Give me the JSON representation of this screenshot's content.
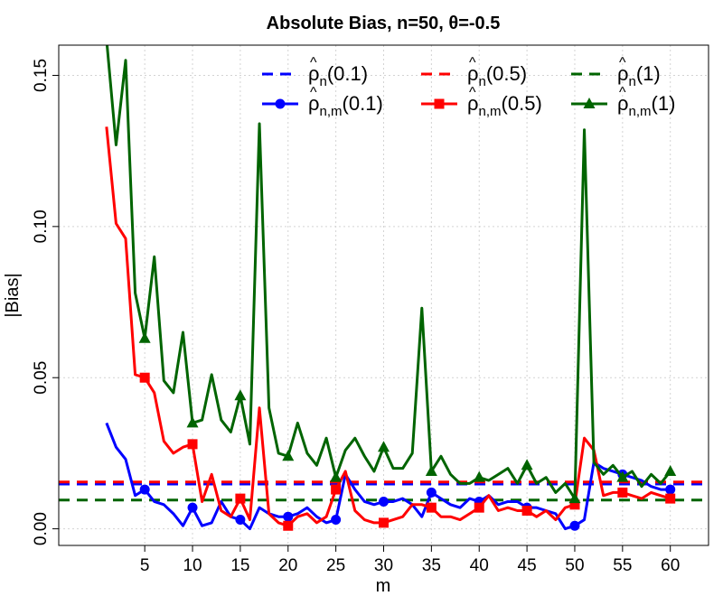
{
  "chart_data": {
    "type": "line",
    "title": "Absolute Bias, n=50, θ=-0.5",
    "xlabel": "m",
    "ylabel": "|Bias|",
    "xlim": [
      -4,
      64
    ],
    "ylim": [
      -0.0055,
      0.16
    ],
    "x_ticks": [
      5,
      10,
      15,
      20,
      25,
      30,
      35,
      40,
      45,
      50,
      55,
      60
    ],
    "y_ticks": [
      0.0,
      0.05,
      0.1,
      0.15
    ],
    "y_tick_labels": [
      "0.00",
      "0.05",
      "0.10",
      "0.15"
    ],
    "grid": true,
    "legend_position": "top-right",
    "reference_lines": [
      {
        "rho": "ρ",
        "sub": "n",
        "arg": "(0.1)",
        "value": 0.0148,
        "color": "#0000ff"
      },
      {
        "rho": "ρ",
        "sub": "n",
        "arg": "(0.5)",
        "value": 0.0155,
        "color": "#ff0000"
      },
      {
        "rho": "ρ",
        "sub": "n",
        "arg": "(1)",
        "value": 0.0095,
        "color": "#006400"
      }
    ],
    "series": [
      {
        "rho": "ρ",
        "sub": "n,m",
        "arg": "(0.1)",
        "color": "#0000ff",
        "marker": "circle",
        "x": [
          1,
          2,
          3,
          4,
          5,
          6,
          7,
          8,
          9,
          10,
          11,
          12,
          13,
          14,
          15,
          16,
          17,
          18,
          19,
          20,
          21,
          22,
          23,
          24,
          25,
          26,
          27,
          28,
          29,
          30,
          31,
          32,
          33,
          34,
          35,
          36,
          37,
          38,
          39,
          40,
          41,
          42,
          43,
          44,
          45,
          46,
          47,
          48,
          49,
          50,
          51,
          52,
          53,
          54,
          55,
          56,
          57,
          58,
          59,
          60
        ],
        "values": [
          0.035,
          0.027,
          0.023,
          0.011,
          0.013,
          0.009,
          0.008,
          0.005,
          0.001,
          0.007,
          0.001,
          0.002,
          0.009,
          0.004,
          0.003,
          0.0,
          0.007,
          0.005,
          0.004,
          0.004,
          0.005,
          0.007,
          0.004,
          0.002,
          0.003,
          0.018,
          0.013,
          0.009,
          0.008,
          0.009,
          0.009,
          0.01,
          0.008,
          0.004,
          0.012,
          0.01,
          0.008,
          0.007,
          0.01,
          0.009,
          0.011,
          0.008,
          0.009,
          0.009,
          0.007,
          0.007,
          0.006,
          0.005,
          0.0,
          0.001,
          0.003,
          0.022,
          0.02,
          0.019,
          0.018,
          0.017,
          0.016,
          0.014,
          0.013,
          0.013
        ]
      },
      {
        "rho": "ρ",
        "sub": "n,m",
        "arg": "(0.5)",
        "color": "#ff0000",
        "marker": "square",
        "x": [
          1,
          2,
          3,
          4,
          5,
          6,
          7,
          8,
          9,
          10,
          11,
          12,
          13,
          14,
          15,
          16,
          17,
          18,
          19,
          20,
          21,
          22,
          23,
          24,
          25,
          26,
          27,
          28,
          29,
          30,
          31,
          32,
          33,
          34,
          35,
          36,
          37,
          38,
          39,
          40,
          41,
          42,
          43,
          44,
          45,
          46,
          47,
          48,
          49,
          50,
          51,
          52,
          53,
          54,
          55,
          56,
          57,
          58,
          59,
          60
        ],
        "values": [
          0.133,
          0.101,
          0.096,
          0.051,
          0.05,
          0.045,
          0.029,
          0.025,
          0.027,
          0.028,
          0.009,
          0.018,
          0.006,
          0.004,
          0.01,
          0.003,
          0.04,
          0.005,
          0.002,
          0.001,
          0.004,
          0.005,
          0.002,
          0.004,
          0.013,
          0.019,
          0.006,
          0.003,
          0.002,
          0.002,
          0.003,
          0.004,
          0.008,
          0.008,
          0.007,
          0.004,
          0.004,
          0.003,
          0.005,
          0.007,
          0.011,
          0.006,
          0.007,
          0.006,
          0.006,
          0.004,
          0.006,
          0.003,
          0.007,
          0.008,
          0.03,
          0.026,
          0.011,
          0.012,
          0.012,
          0.011,
          0.01,
          0.012,
          0.011,
          0.01
        ]
      },
      {
        "rho": "ρ",
        "sub": "n,m",
        "arg": "(1)",
        "color": "#006400",
        "marker": "triangle",
        "x": [
          1,
          2,
          3,
          4,
          5,
          6,
          7,
          8,
          9,
          10,
          11,
          12,
          13,
          14,
          15,
          16,
          17,
          18,
          19,
          20,
          21,
          22,
          23,
          24,
          25,
          26,
          27,
          28,
          29,
          30,
          31,
          32,
          33,
          34,
          35,
          36,
          37,
          38,
          39,
          40,
          41,
          42,
          43,
          44,
          45,
          46,
          47,
          48,
          49,
          50,
          51,
          52,
          53,
          54,
          55,
          56,
          57,
          58,
          59,
          60
        ],
        "values": [
          0.162,
          0.127,
          0.155,
          0.078,
          0.063,
          0.09,
          0.049,
          0.045,
          0.065,
          0.035,
          0.036,
          0.051,
          0.036,
          0.032,
          0.044,
          0.028,
          0.134,
          0.04,
          0.025,
          0.024,
          0.035,
          0.025,
          0.021,
          0.03,
          0.017,
          0.026,
          0.03,
          0.024,
          0.019,
          0.027,
          0.02,
          0.02,
          0.025,
          0.073,
          0.019,
          0.024,
          0.018,
          0.015,
          0.015,
          0.017,
          0.016,
          0.018,
          0.02,
          0.015,
          0.021,
          0.015,
          0.017,
          0.012,
          0.015,
          0.01,
          0.132,
          0.022,
          0.018,
          0.021,
          0.017,
          0.019,
          0.014,
          0.018,
          0.015,
          0.019
        ]
      }
    ]
  }
}
